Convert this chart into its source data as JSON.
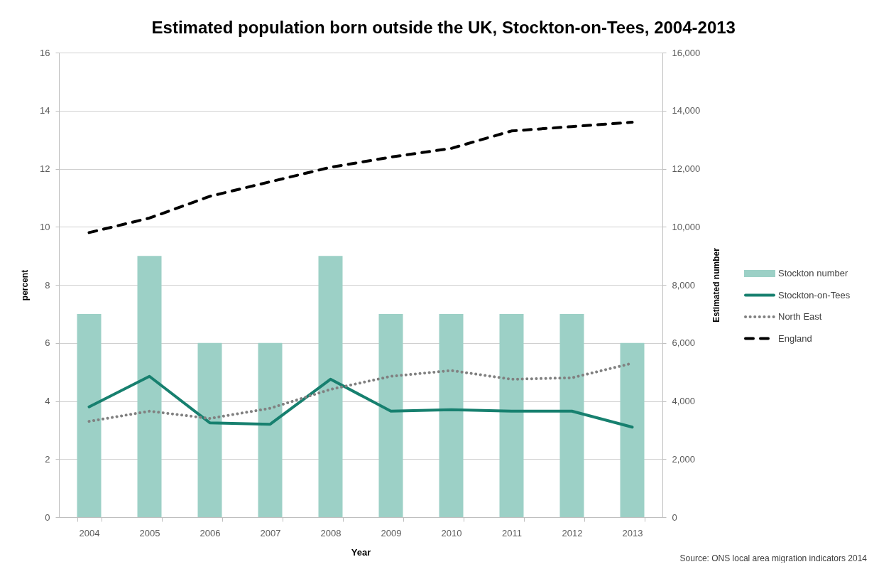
{
  "chart_data": {
    "type": "bar",
    "title": "Estimated population born outside the UK, Stockton-on-Tees, 2004-2013",
    "xlabel": "Year",
    "ylabel": "percent",
    "y2label": "Estimated number",
    "categories": [
      "2004",
      "2005",
      "2006",
      "2007",
      "2008",
      "2009",
      "2010",
      "2011",
      "2012",
      "2013"
    ],
    "series": [
      {
        "name": "Stockton number",
        "axis": "y2",
        "color": "#9cd0c6",
        "values": [
          7000,
          9000,
          6000,
          6000,
          9000,
          7000,
          7000,
          7000,
          7000,
          6000
        ]
      },
      {
        "name": "Stockton-on-Tees",
        "type": "line",
        "color": "#17806f",
        "line_style": "solid",
        "values": [
          3.8,
          4.85,
          3.25,
          3.2,
          4.75,
          3.65,
          3.7,
          3.65,
          3.65,
          3.1
        ]
      },
      {
        "name": "North East",
        "type": "line",
        "color": "#808080",
        "line_style": "dotted",
        "values": [
          3.3,
          3.65,
          3.4,
          3.75,
          4.4,
          4.85,
          5.05,
          4.75,
          4.8,
          5.3
        ]
      },
      {
        "name": "England",
        "type": "line",
        "color": "#000000",
        "line_style": "dashed",
        "values": [
          9.8,
          10.3,
          11.05,
          11.55,
          12.05,
          12.4,
          12.7,
          13.3,
          13.45,
          13.6
        ]
      }
    ],
    "ylim": [
      0,
      16
    ],
    "yticks": [
      0,
      2,
      4,
      6,
      8,
      10,
      12,
      14,
      16
    ],
    "y2lim": [
      0,
      16000
    ],
    "y2ticks": [
      0,
      {
        "value": 2000,
        "label": "2,000"
      },
      {
        "value": 4000,
        "label": "4,000"
      },
      {
        "value": 6000,
        "label": "6,000"
      },
      {
        "value": 8000,
        "label": "8,000"
      },
      {
        "value": 10000,
        "label": "10,000"
      },
      {
        "value": 12000,
        "label": "12,000"
      },
      {
        "value": 14000,
        "label": "14,000"
      },
      {
        "value": 16000,
        "label": "16,000"
      }
    ],
    "grid": "y",
    "legend": "right",
    "annotations": [
      "Source: ONS local area migration indicators 2014"
    ]
  }
}
